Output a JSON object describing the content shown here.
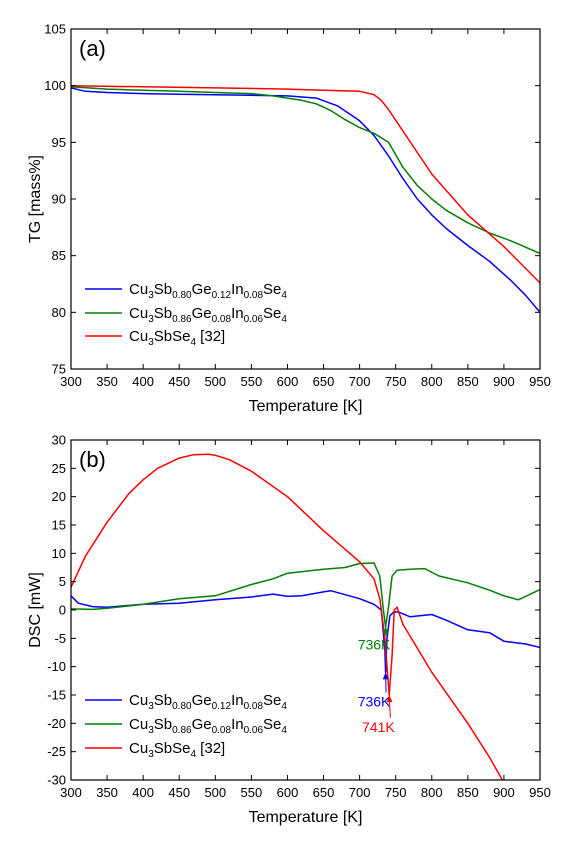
{
  "chart_data": [
    {
      "type": "line",
      "panel_label": "(a)",
      "xlabel": "Temperature [K]",
      "ylabel": "TG [mass%]",
      "xlim": [
        300,
        950
      ],
      "ylim": [
        75,
        105
      ],
      "xticks": [
        300,
        350,
        400,
        450,
        500,
        550,
        600,
        650,
        700,
        750,
        800,
        850,
        900,
        950
      ],
      "yticks": [
        75,
        80,
        85,
        90,
        95,
        100,
        105
      ],
      "grid": false,
      "legend_position": "bottom-left",
      "series": [
        {
          "name": "Cu3Sb0.80Ge0.12In0.08Se4",
          "name_parts": [
            [
              "Cu",
              ""
            ],
            [
              "3",
              "sub"
            ],
            [
              "Sb",
              ""
            ],
            [
              "0.80",
              "sub"
            ],
            [
              "Ge",
              ""
            ],
            [
              "0.12",
              "sub"
            ],
            [
              "In",
              ""
            ],
            [
              "0.08",
              "sub"
            ],
            [
              "Se",
              ""
            ],
            [
              "4",
              "sub"
            ]
          ],
          "color": "#0000ff",
          "x": [
            300,
            320,
            350,
            400,
            450,
            500,
            550,
            600,
            640,
            670,
            700,
            720,
            740,
            760,
            780,
            800,
            820,
            850,
            880,
            910,
            930,
            950
          ],
          "y": [
            99.8,
            99.5,
            99.4,
            99.3,
            99.25,
            99.2,
            99.15,
            99.1,
            98.9,
            98.2,
            96.9,
            95.6,
            93.8,
            91.8,
            90.0,
            88.6,
            87.4,
            85.9,
            84.5,
            82.8,
            81.5,
            80.0
          ]
        },
        {
          "name": "Cu3Sb0.86Ge0.08In0.06Se4",
          "name_parts": [
            [
              "Cu",
              ""
            ],
            [
              "3",
              "sub"
            ],
            [
              "Sb",
              ""
            ],
            [
              "0.86",
              "sub"
            ],
            [
              "Ge",
              ""
            ],
            [
              "0.08",
              "sub"
            ],
            [
              "In",
              ""
            ],
            [
              "0.06",
              "sub"
            ],
            [
              "Se",
              ""
            ],
            [
              "4",
              "sub"
            ]
          ],
          "color": "#008000",
          "x": [
            300,
            350,
            400,
            450,
            500,
            550,
            580,
            600,
            620,
            640,
            660,
            680,
            700,
            720,
            740,
            760,
            780,
            800,
            820,
            850,
            880,
            910,
            950
          ],
          "y": [
            99.9,
            99.7,
            99.6,
            99.5,
            99.4,
            99.3,
            99.1,
            98.9,
            98.7,
            98.4,
            97.8,
            97.0,
            96.3,
            95.8,
            95.0,
            92.8,
            91.2,
            90.0,
            89.0,
            87.9,
            87.0,
            86.3,
            85.2
          ]
        },
        {
          "name": "Cu3SbSe4 [32]",
          "name_parts": [
            [
              "Cu",
              ""
            ],
            [
              "3",
              "sub"
            ],
            [
              "SbSe",
              ""
            ],
            [
              "4",
              "sub"
            ],
            [
              " [32]",
              ""
            ]
          ],
          "color": "#ff0000",
          "x": [
            300,
            400,
            500,
            600,
            650,
            700,
            720,
            730,
            740,
            760,
            800,
            850,
            900,
            950
          ],
          "y": [
            100.0,
            99.9,
            99.8,
            99.7,
            99.6,
            99.5,
            99.2,
            98.7,
            97.9,
            96.0,
            92.2,
            88.6,
            85.8,
            82.6
          ]
        }
      ]
    },
    {
      "type": "line",
      "panel_label": "(b)",
      "xlabel": "Temperature [K]",
      "ylabel": "DSC [mW]",
      "xlim": [
        300,
        950
      ],
      "ylim": [
        -30,
        30
      ],
      "xticks": [
        300,
        350,
        400,
        450,
        500,
        550,
        600,
        650,
        700,
        750,
        800,
        850,
        900,
        950
      ],
      "yticks": [
        -30,
        -25,
        -20,
        -15,
        -10,
        -5,
        0,
        5,
        10,
        15,
        20,
        25,
        30
      ],
      "grid": false,
      "legend_position": "bottom-left",
      "series": [
        {
          "name": "Cu3Sb0.80Ge0.12In0.08Se4",
          "name_parts": [
            [
              "Cu",
              ""
            ],
            [
              "3",
              "sub"
            ],
            [
              "Sb",
              ""
            ],
            [
              "0.80",
              "sub"
            ],
            [
              "Ge",
              ""
            ],
            [
              "0.12",
              "sub"
            ],
            [
              "In",
              ""
            ],
            [
              "0.08",
              "sub"
            ],
            [
              "Se",
              ""
            ],
            [
              "4",
              "sub"
            ]
          ],
          "color": "#0000ff",
          "x": [
            300,
            310,
            330,
            350,
            380,
            400,
            450,
            500,
            550,
            580,
            600,
            620,
            650,
            660,
            680,
            700,
            720,
            730,
            735,
            736,
            738,
            742,
            748,
            755,
            770,
            800,
            820,
            850,
            880,
            900,
            930,
            950
          ],
          "y": [
            2.5,
            1.2,
            0.6,
            0.5,
            0.8,
            1.0,
            1.2,
            1.8,
            2.3,
            2.8,
            2.4,
            2.5,
            3.2,
            3.4,
            2.7,
            2.0,
            1.0,
            0.0,
            -7.0,
            -11.0,
            -5.0,
            -1.0,
            -0.3,
            -0.4,
            -1.2,
            -0.8,
            -1.8,
            -3.5,
            -4.0,
            -5.5,
            -6.0,
            -6.6
          ]
        },
        {
          "name": "Cu3Sb0.86Ge0.08In0.06Se4",
          "name_parts": [
            [
              "Cu",
              ""
            ],
            [
              "3",
              "sub"
            ],
            [
              "Sb",
              ""
            ],
            [
              "0.86",
              "sub"
            ],
            [
              "Ge",
              ""
            ],
            [
              "0.08",
              "sub"
            ],
            [
              "In",
              ""
            ],
            [
              "0.06",
              "sub"
            ],
            [
              "Se",
              ""
            ],
            [
              "4",
              "sub"
            ]
          ],
          "color": "#008000",
          "x": [
            300,
            330,
            350,
            400,
            450,
            500,
            550,
            580,
            600,
            650,
            680,
            700,
            720,
            728,
            733,
            736,
            740,
            745,
            752,
            770,
            790,
            810,
            850,
            880,
            900,
            920,
            950
          ],
          "y": [
            0.2,
            0.1,
            0.3,
            1.0,
            2.0,
            2.5,
            4.5,
            5.5,
            6.5,
            7.2,
            7.5,
            8.2,
            8.3,
            6.0,
            0.0,
            -3.0,
            0.5,
            6.0,
            7.0,
            7.2,
            7.3,
            6.0,
            4.8,
            3.5,
            2.5,
            1.8,
            3.6
          ]
        },
        {
          "name": "Cu3SbSe4 [32]",
          "name_parts": [
            [
              "Cu",
              ""
            ],
            [
              "3",
              "sub"
            ],
            [
              "SbSe",
              ""
            ],
            [
              "4",
              "sub"
            ],
            [
              " [32]",
              ""
            ]
          ],
          "color": "#ff0000",
          "x": [
            300,
            320,
            350,
            380,
            400,
            420,
            450,
            470,
            490,
            500,
            520,
            550,
            600,
            650,
            700,
            720,
            728,
            735,
            738,
            741,
            745,
            748,
            752,
            760,
            800,
            850,
            880,
            900
          ],
          "y": [
            4.0,
            9.5,
            15.5,
            20.5,
            23.0,
            25.0,
            26.8,
            27.4,
            27.5,
            27.3,
            26.5,
            24.5,
            20.0,
            14.0,
            8.5,
            5.5,
            2.0,
            -5.0,
            -10.0,
            -15.0,
            -8.0,
            0.0,
            0.5,
            -2.5,
            -11.0,
            -20.0,
            -26.0,
            -30.5
          ]
        }
      ],
      "annotations": [
        {
          "text": "736K",
          "color": "#008000",
          "point": [
            736,
            -3.0
          ],
          "text_at": [
            720,
            -7.0
          ]
        },
        {
          "text": "736K",
          "color": "#0000ff",
          "point": [
            736,
            -11.0
          ],
          "text_at": [
            720,
            -17.0
          ]
        },
        {
          "text": "741K",
          "color": "#ff0000",
          "point": [
            741,
            -15.0
          ],
          "text_at": [
            726,
            -21.5
          ]
        }
      ]
    }
  ]
}
